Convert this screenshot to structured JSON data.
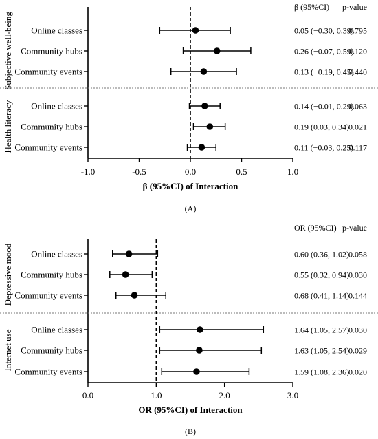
{
  "chart_data": [
    {
      "type": "forest",
      "panel_label": "(A)",
      "xlabel": "β (95%CI)  of Interaction",
      "xlim": [
        -1.0,
        1.0
      ],
      "xticks": [
        "-1.0",
        "-0.5",
        "0.0",
        "0.5",
        "1.0"
      ],
      "reference_line": 0.0,
      "header_estimate": "β (95%CI)",
      "header_p": "p-value",
      "groups": [
        {
          "name": "Subjective well-being",
          "rows": [
            {
              "label": "Online classes",
              "est": 0.05,
              "lo": -0.3,
              "hi": 0.39,
              "ci_text": "0.05 (−0.30, 0.39)",
              "p": "0.795"
            },
            {
              "label": "Community hubs",
              "est": 0.26,
              "lo": -0.07,
              "hi": 0.59,
              "ci_text": "0.26 (−0.07, 0.59)",
              "p": "0.120"
            },
            {
              "label": "Community events",
              "est": 0.13,
              "lo": -0.19,
              "hi": 0.45,
              "ci_text": "0.13 (−0.19, 0.45)",
              "p": "0.440"
            }
          ]
        },
        {
          "name": "Health literacy",
          "rows": [
            {
              "label": "Online classes",
              "est": 0.14,
              "lo": -0.01,
              "hi": 0.29,
              "ci_text": "0.14 (−0.01, 0.29)",
              "p": "0.063"
            },
            {
              "label": "Community hubs",
              "est": 0.19,
              "lo": 0.03,
              "hi": 0.34,
              "ci_text": "0.19 (0.03, 0.34)",
              "p": "0.021"
            },
            {
              "label": "Community events",
              "est": 0.11,
              "lo": -0.03,
              "hi": 0.25,
              "ci_text": "0.11 (−0.03, 0.25)",
              "p": "0.117"
            }
          ]
        }
      ]
    },
    {
      "type": "forest",
      "panel_label": "(B)",
      "xlabel": "OR (95%CI) of Interaction",
      "xlim": [
        0.0,
        3.0
      ],
      "xticks": [
        "0.0",
        "1.0",
        "2.0",
        "3.0"
      ],
      "reference_line": 1.0,
      "header_estimate": "OR (95%CI)",
      "header_p": "p-value",
      "groups": [
        {
          "name": "Depressive mood",
          "rows": [
            {
              "label": "Online classes",
              "est": 0.6,
              "lo": 0.36,
              "hi": 1.02,
              "ci_text": "0.60 (0.36, 1.02)",
              "p": "0.058"
            },
            {
              "label": "Community hubs",
              "est": 0.55,
              "lo": 0.32,
              "hi": 0.94,
              "ci_text": "0.55 (0.32, 0.94)",
              "p": "0.030"
            },
            {
              "label": "Community events",
              "est": 0.68,
              "lo": 0.41,
              "hi": 1.14,
              "ci_text": "0.68 (0.41, 1.14)",
              "p": "0.144"
            }
          ]
        },
        {
          "name": "Internet use",
          "rows": [
            {
              "label": "Online classes",
              "est": 1.64,
              "lo": 1.05,
              "hi": 2.57,
              "ci_text": "1.64 (1.05, 2.57)",
              "p": "0.030"
            },
            {
              "label": "Community hubs",
              "est": 1.63,
              "lo": 1.05,
              "hi": 2.54,
              "ci_text": "1.63 (1.05, 2.54)",
              "p": "0.029"
            },
            {
              "label": "Community events",
              "est": 1.59,
              "lo": 1.08,
              "hi": 2.36,
              "ci_text": "1.59 (1.08, 2.36)",
              "p": "0.020"
            }
          ]
        }
      ]
    }
  ]
}
